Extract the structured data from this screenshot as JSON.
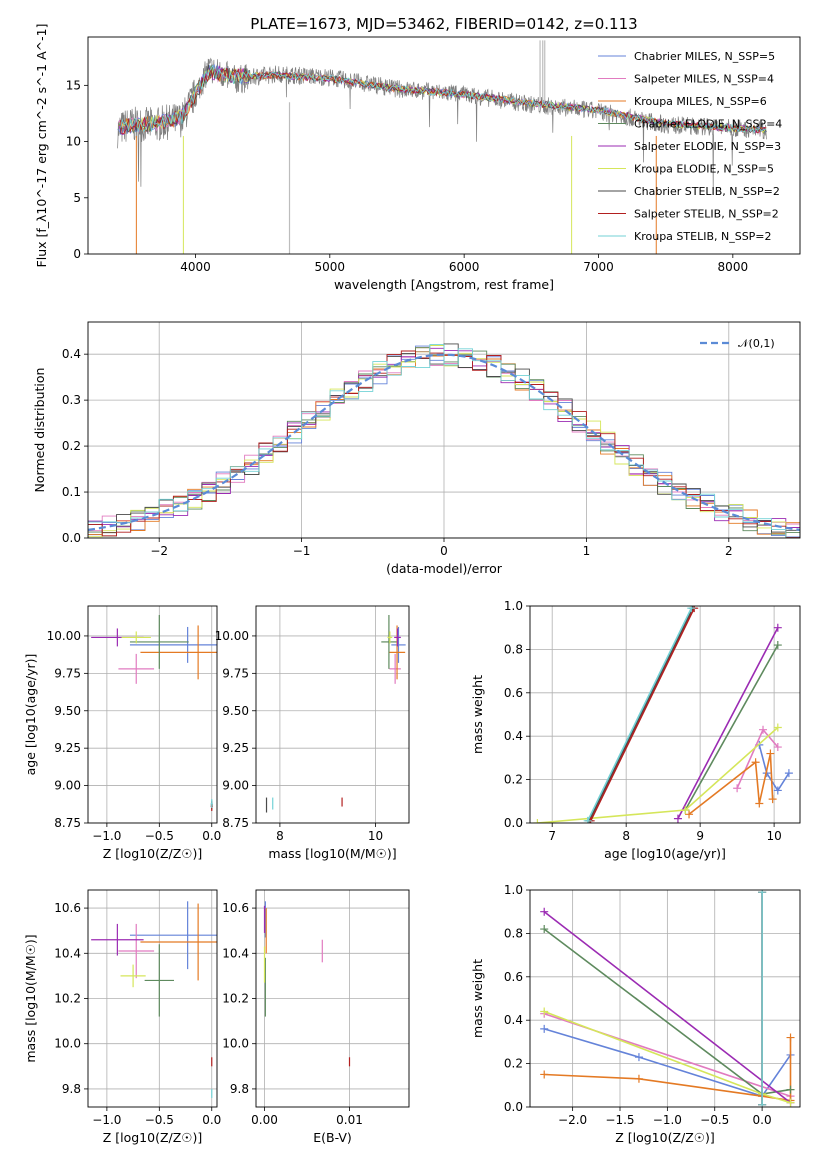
{
  "chart_data": [
    {
      "type": "line",
      "title": "PLATE=1673, MJD=53462, FIBERID=0142, z=0.113",
      "xlabel": "wavelength [Angstrom, rest frame]",
      "ylabel": "Flux [f_λ10^-17 erg cm^-2 s^-1 A^-1]",
      "xlim": [
        3200,
        8500
      ],
      "ylim": [
        0,
        19.3
      ],
      "xticks": [
        "4000",
        "5000",
        "6000",
        "7000",
        "8000"
      ],
      "yticks": [
        "0",
        "5",
        "10",
        "15"
      ],
      "legend_position": "top-right",
      "grid": false,
      "data_spectrum": {
        "name": "",
        "x": [
          3420,
          3500,
          3700,
          3900,
          4100,
          4300,
          4600,
          5000,
          5500,
          6000,
          6500,
          7000,
          7500,
          8000,
          8250
        ],
        "y": [
          11.0,
          11.5,
          11.5,
          12.0,
          16.5,
          15.5,
          16.0,
          15.7,
          14.7,
          14.2,
          13.3,
          12.7,
          11.5,
          11.2,
          11.0
        ]
      },
      "series": [
        {
          "name": "Chabrier MILES, N_SSP=5",
          "color": "#6483d9"
        },
        {
          "name": "Salpeter MILES, N_SSP=4",
          "color": "#e17bc0"
        },
        {
          "name": "Kroupa MILES, N_SSP=6",
          "color": "#e47a24"
        },
        {
          "name": "Chabrier ELODIE, N_SSP=4",
          "color": "#5e8a5e"
        },
        {
          "name": "Salpeter ELODIE, N_SSP=3",
          "color": "#9b2bb3"
        },
        {
          "name": "Kroupa ELODIE, N_SSP=5",
          "color": "#d5e65a"
        },
        {
          "name": "Chabrier STELIB, N_SSP=2",
          "color": "#4a4a4a"
        },
        {
          "name": "Salpeter STELIB, N_SSP=2",
          "color": "#b21f1f"
        },
        {
          "name": "Kroupa STELIB, N_SSP=2",
          "color": "#73d2d6"
        }
      ],
      "model_continuum": {
        "x": [
          3420,
          3500,
          3700,
          3900,
          4100,
          4300,
          4600,
          5000,
          5500,
          6000,
          6500,
          7000,
          7500,
          8000,
          8250
        ],
        "y": [
          11.2,
          11.4,
          11.6,
          12.2,
          16.2,
          15.8,
          15.9,
          15.6,
          14.7,
          14.2,
          13.4,
          12.8,
          11.6,
          11.2,
          11.0
        ]
      }
    },
    {
      "type": "line",
      "title": "",
      "xlabel": "(data-model)/error",
      "ylabel": "Normed distribution",
      "xlim": [
        -2.5,
        2.5
      ],
      "ylim": [
        0,
        0.47
      ],
      "xticks": [
        "−2",
        "−1",
        "0",
        "1",
        "2"
      ],
      "yticks": [
        "0.0",
        "0.1",
        "0.2",
        "0.3",
        "0.4"
      ],
      "grid": true,
      "legend_position": "top-right",
      "gaussian": {
        "name": "𝒩(0,1)",
        "color": "#5b8bd6",
        "mean": 0,
        "sigma": 1
      },
      "histogram_bin_width": 0.1
    },
    {
      "type": "scatter",
      "xlabel": "Z [log10(Z/Z☉)]",
      "ylabel": "age  [log10(age/yr)]",
      "xlim": [
        -1.18,
        0.05
      ],
      "ylim": [
        8.75,
        10.2
      ],
      "xticks": [
        "−1.0",
        "−0.5",
        "0.0"
      ],
      "yticks": [
        "8.75",
        "9.00",
        "9.25",
        "9.50",
        "9.75",
        "10.00"
      ],
      "points": [
        {
          "c": "#6483d9",
          "x": -0.23,
          "y": 9.94,
          "ex": 0.55,
          "ey": 0.12
        },
        {
          "c": "#e17bc0",
          "x": -0.72,
          "y": 9.78,
          "ex": 0.17,
          "ey": 0.1
        },
        {
          "c": "#e47a24",
          "x": -0.13,
          "y": 9.89,
          "ex": 0.55,
          "ey": 0.18
        },
        {
          "c": "#5e8a5e",
          "x": -0.5,
          "y": 9.96,
          "ex": 0.28,
          "ey": 0.18
        },
        {
          "c": "#9b2bb3",
          "x": -0.9,
          "y": 9.99,
          "ex": 0.25,
          "ey": 0.06
        },
        {
          "c": "#d5e65a",
          "x": -0.72,
          "y": 9.99,
          "ex": 0.14,
          "ey": 0.04
        },
        {
          "c": "#4a4a4a",
          "x": 0.0,
          "y": 8.87,
          "ex": 0.01,
          "ey": 0.03
        },
        {
          "c": "#b21f1f",
          "x": 0.0,
          "y": 8.86,
          "ex": 0.01,
          "ey": 0.03
        },
        {
          "c": "#73d2d6",
          "x": 0.0,
          "y": 8.88,
          "ex": 0.01,
          "ey": 0.03
        }
      ]
    },
    {
      "type": "scatter",
      "xlabel": "mass [log10(M/M☉)]",
      "ylabel": "",
      "xlim": [
        7.5,
        10.7
      ],
      "ylim": [
        8.75,
        10.2
      ],
      "xticks": [
        "8",
        "10"
      ],
      "yticks": [
        "8.75",
        "9.00",
        "9.25",
        "9.50",
        "9.75",
        "10.00"
      ],
      "points": [
        {
          "c": "#6483d9",
          "x": 10.48,
          "y": 9.94,
          "ex": 0.15,
          "ey": 0.12
        },
        {
          "c": "#e17bc0",
          "x": 10.41,
          "y": 9.78,
          "ex": 0.12,
          "ey": 0.1
        },
        {
          "c": "#e47a24",
          "x": 10.45,
          "y": 9.89,
          "ex": 0.17,
          "ey": 0.18
        },
        {
          "c": "#5e8a5e",
          "x": 10.28,
          "y": 9.96,
          "ex": 0.16,
          "ey": 0.18
        },
        {
          "c": "#9b2bb3",
          "x": 10.46,
          "y": 9.99,
          "ex": 0.07,
          "ey": 0.06
        },
        {
          "c": "#d5e65a",
          "x": 10.3,
          "y": 9.99,
          "ex": 0.05,
          "ey": 0.04
        },
        {
          "c": "#4a4a4a",
          "x": 7.72,
          "y": 8.87,
          "ex": 0.0,
          "ey": 0.05
        },
        {
          "c": "#b21f1f",
          "x": 9.3,
          "y": 8.89,
          "ex": 0.0,
          "ey": 0.03
        },
        {
          "c": "#73d2d6",
          "x": 7.85,
          "y": 8.88,
          "ex": 0.0,
          "ey": 0.04
        }
      ]
    },
    {
      "type": "line",
      "xlabel": "age  [log10(age/yr)]",
      "ylabel": "mass weight",
      "xlim": [
        6.7,
        10.35
      ],
      "ylim": [
        0,
        1.0
      ],
      "xticks": [
        "7",
        "8",
        "9",
        "10"
      ],
      "yticks": [
        "0.0",
        "0.2",
        "0.4",
        "0.6",
        "0.8",
        "1.0"
      ],
      "series": [
        {
          "c": "#6483d9",
          "x": [
            9.8,
            9.9,
            10.05,
            10.2
          ],
          "y": [
            0.36,
            0.23,
            0.15,
            0.23
          ]
        },
        {
          "c": "#e17bc0",
          "x": [
            9.5,
            9.85,
            10.05
          ],
          "y": [
            0.16,
            0.43,
            0.35
          ]
        },
        {
          "c": "#e47a24",
          "x": [
            8.85,
            9.75,
            9.8,
            9.95,
            9.98
          ],
          "y": [
            0.04,
            0.28,
            0.09,
            0.32,
            0.11
          ]
        },
        {
          "c": "#5e8a5e",
          "x": [
            8.8,
            10.05
          ],
          "y": [
            0.06,
            0.82
          ]
        },
        {
          "c": "#9b2bb3",
          "x": [
            8.7,
            10.05
          ],
          "y": [
            0.02,
            0.9
          ]
        },
        {
          "c": "#d5e65a",
          "x": [
            6.8,
            8.8,
            10.05
          ],
          "y": [
            0.0,
            0.06,
            0.44
          ]
        },
        {
          "c": "#4a4a4a",
          "x": [
            7.5,
            8.9
          ],
          "y": [
            0.01,
            0.99
          ]
        },
        {
          "c": "#b21f1f",
          "x": [
            7.52,
            8.92
          ],
          "y": [
            0.01,
            0.99
          ]
        },
        {
          "c": "#73d2d6",
          "x": [
            7.48,
            8.88
          ],
          "y": [
            0.01,
            0.99
          ]
        }
      ]
    },
    {
      "type": "scatter",
      "xlabel": "Z [log10(Z/Z☉)]",
      "ylabel": "mass [log10(M/M☉)]",
      "xlim": [
        -1.18,
        0.05
      ],
      "ylim": [
        9.72,
        10.68
      ],
      "xticks": [
        "−1.0",
        "−0.5",
        "0.0"
      ],
      "yticks": [
        "9.8",
        "10.0",
        "10.2",
        "10.4",
        "10.6"
      ],
      "points": [
        {
          "c": "#6483d9",
          "x": -0.23,
          "y": 10.48,
          "ex": 0.55,
          "ey": 0.15
        },
        {
          "c": "#e17bc0",
          "x": -0.72,
          "y": 10.41,
          "ex": 0.17,
          "ey": 0.12
        },
        {
          "c": "#e47a24",
          "x": -0.13,
          "y": 10.45,
          "ex": 0.55,
          "ey": 0.17
        },
        {
          "c": "#5e8a5e",
          "x": -0.5,
          "y": 10.28,
          "ex": 0.14,
          "ey": 0.16
        },
        {
          "c": "#9b2bb3",
          "x": -0.9,
          "y": 10.46,
          "ex": 0.25,
          "ey": 0.07
        },
        {
          "c": "#d5e65a",
          "x": -0.75,
          "y": 10.3,
          "ex": 0.12,
          "ey": 0.05
        },
        {
          "c": "#b21f1f",
          "x": 0.0,
          "y": 9.92,
          "ex": 0.0,
          "ey": 0.02
        },
        {
          "c": "#73d2d6",
          "x": 0.0,
          "y": 9.78,
          "ex": 0.0,
          "ey": 0.02
        }
      ]
    },
    {
      "type": "scatter",
      "xlabel": "E(B-V)",
      "ylabel": "",
      "xlim": [
        -0.001,
        0.017
      ],
      "ylim": [
        9.72,
        10.68
      ],
      "xticks": [
        "0.00",
        "0.01"
      ],
      "yticks": [
        "9.8",
        "10.0",
        "10.2",
        "10.4",
        "10.6"
      ],
      "points": [
        {
          "c": "#e17bc0",
          "x": 0.0068,
          "y": 10.41,
          "ex": 0.0,
          "ey": 0.05
        },
        {
          "c": "#6483d9",
          "x": 0.0001,
          "y": 10.55,
          "ex": 0.0,
          "ey": 0.08
        },
        {
          "c": "#e47a24",
          "x": 0.0002,
          "y": 10.5,
          "ex": 0.0,
          "ey": 0.1
        },
        {
          "c": "#5e8a5e",
          "x": 0.0001,
          "y": 10.25,
          "ex": 0.0,
          "ey": 0.13
        },
        {
          "c": "#9b2bb3",
          "x": 0.0,
          "y": 10.55,
          "ex": 0.0,
          "ey": 0.06
        },
        {
          "c": "#d5e65a",
          "x": 0.0,
          "y": 10.35,
          "ex": 0.0,
          "ey": 0.08
        },
        {
          "c": "#b21f1f",
          "x": 0.01,
          "y": 9.92,
          "ex": 0.0,
          "ey": 0.02
        }
      ]
    },
    {
      "type": "line",
      "xlabel": "Z [log10(Z/Z☉)]",
      "ylabel": "mass weight",
      "xlim": [
        -2.45,
        0.4
      ],
      "ylim": [
        0,
        1.0
      ],
      "xticks": [
        "−2.0",
        "−1.5",
        "−1.0",
        "−0.5",
        "0.0"
      ],
      "yticks": [
        "0.0",
        "0.2",
        "0.4",
        "0.6",
        "0.8",
        "1.0"
      ],
      "series": [
        {
          "c": "#6483d9",
          "x": [
            -2.3,
            -1.3,
            0.0,
            0.3
          ],
          "y": [
            0.36,
            0.23,
            0.05,
            0.24
          ]
        },
        {
          "c": "#e17bc0",
          "x": [
            -2.3,
            0.3
          ],
          "y": [
            0.43,
            0.05
          ]
        },
        {
          "c": "#e47a24",
          "x": [
            -2.3,
            -1.3,
            0.0,
            0.3,
            0.3
          ],
          "y": [
            0.15,
            0.13,
            0.05,
            0.03,
            0.32
          ]
        },
        {
          "c": "#5e8a5e",
          "x": [
            -2.3,
            0.0,
            0.3
          ],
          "y": [
            0.82,
            0.06,
            0.08
          ]
        },
        {
          "c": "#9b2bb3",
          "x": [
            -2.3,
            0.3
          ],
          "y": [
            0.9,
            0.02
          ]
        },
        {
          "c": "#d5e65a",
          "x": [
            -2.3,
            0.0,
            0.3
          ],
          "y": [
            0.44,
            0.06,
            0.02
          ]
        },
        {
          "c": "#4a4a4a",
          "x": [
            0.0,
            0.0
          ],
          "y": [
            0.01,
            0.99
          ]
        },
        {
          "c": "#b21f1f",
          "x": [
            0.0,
            0.0
          ],
          "y": [
            0.01,
            0.99
          ]
        },
        {
          "c": "#73d2d6",
          "x": [
            0.0,
            0.0
          ],
          "y": [
            0.01,
            0.99
          ]
        }
      ]
    }
  ]
}
